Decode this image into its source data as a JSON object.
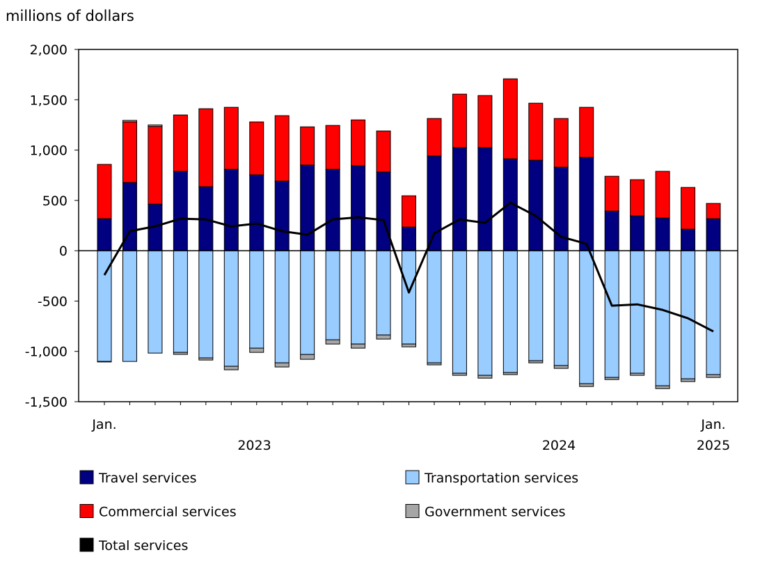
{
  "chart_data": {
    "type": "bar",
    "stacked": true,
    "ylabel": "millions of dollars",
    "ylim": [
      -1500,
      2000
    ],
    "yticks": [
      2000,
      1500,
      1000,
      500,
      0,
      -500,
      -1000,
      -1500
    ],
    "ytick_labels": [
      "2,000",
      "1,500",
      "1,000",
      "500",
      "0",
      "-500",
      "-1,000",
      "-1,500"
    ],
    "categories": [
      "Jan. 2023",
      "Feb. 2023",
      "Mar. 2023",
      "Apr. 2023",
      "May 2023",
      "Jun. 2023",
      "Jul. 2023",
      "Aug. 2023",
      "Sep. 2023",
      "Oct. 2023",
      "Nov. 2023",
      "Dec. 2023",
      "Jan. 2024",
      "Feb. 2024",
      "Mar. 2024",
      "Apr. 2024",
      "May 2024",
      "Jun. 2024",
      "Jul. 2024",
      "Aug. 2024",
      "Sep. 2024",
      "Oct. 2024",
      "Nov. 2024",
      "Dec. 2024",
      "Jan. 2025"
    ],
    "x_tick_labels": [
      {
        "index": 0,
        "label": "Jan."
      },
      {
        "index": 24,
        "label": "Jan."
      }
    ],
    "year_labels": [
      {
        "from": 0,
        "to": 11,
        "label": "2023"
      },
      {
        "from": 12,
        "to": 23,
        "label": "2024"
      },
      {
        "from": 24,
        "to": 24,
        "label": "2025"
      }
    ],
    "series": [
      {
        "name": "Travel services",
        "color": "#000080",
        "kind": "bar",
        "values": [
          318,
          678,
          463,
          789,
          636,
          809,
          754,
          692,
          851,
          809,
          844,
          782,
          235,
          941,
          1024,
          1024,
          913,
          899,
          830,
          927,
          394,
          346,
          325,
          214,
          318
        ]
      },
      {
        "name": "Commercial services",
        "color": "#ff0000",
        "kind": "bar",
        "values": [
          540,
          602,
          772,
          560,
          775,
          616,
          526,
          650,
          380,
          436,
          456,
          408,
          311,
          373,
          532,
          518,
          795,
          567,
          484,
          498,
          346,
          360,
          464,
          415,
          152
        ]
      },
      {
        "name": "Transportation services",
        "color": "#99ccff",
        "kind": "bar",
        "values": [
          -1100,
          -1100,
          -1017,
          -1010,
          -1065,
          -1148,
          -968,
          -1114,
          -1031,
          -885,
          -927,
          -837,
          -927,
          -1114,
          -1217,
          -1238,
          -1210,
          -1093,
          -1141,
          -1321,
          -1259,
          -1217,
          -1342,
          -1273,
          -1231
        ]
      },
      {
        "name": "Government services",
        "color": "#a6a6a6",
        "kind": "bar",
        "values": [
          -5,
          15,
          15,
          -20,
          -21,
          -35,
          -42,
          -41,
          -48,
          -42,
          -41,
          -41,
          -28,
          -20,
          -21,
          -28,
          -21,
          -21,
          -28,
          -28,
          -21,
          -21,
          -28,
          -27,
          -28
        ]
      },
      {
        "name": "Total services",
        "color": "#000000",
        "kind": "line",
        "values": [
          -242,
          194,
          242,
          318,
          311,
          242,
          270,
          194,
          159,
          311,
          332,
          304,
          -415,
          173,
          311,
          277,
          477,
          346,
          138,
          69,
          -546,
          -533,
          -588,
          -671,
          -802
        ]
      }
    ],
    "legend_placement": "bottom",
    "grid": false
  }
}
